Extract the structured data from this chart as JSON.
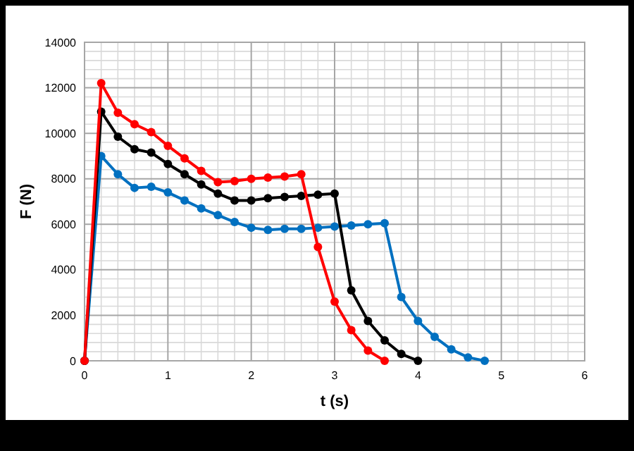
{
  "chart_data": {
    "type": "line",
    "xlabel": "t (s)",
    "ylabel": "F (N)",
    "xlim": [
      0,
      6
    ],
    "xticks": [
      0,
      1,
      2,
      3,
      4,
      5,
      6
    ],
    "ylim": [
      0,
      14000
    ],
    "yticks": [
      0,
      2000,
      4000,
      6000,
      8000,
      10000,
      12000,
      14000
    ],
    "grid": true,
    "marker": "circle",
    "line_style": "solid",
    "series": [
      {
        "color": "#0070c0",
        "x": [
          0,
          0.2,
          0.4,
          0.6,
          0.8,
          1.0,
          1.2,
          1.4,
          1.6,
          1.8,
          2.0,
          2.2,
          2.4,
          2.6,
          2.8,
          3.0,
          3.2,
          3.4,
          3.6,
          3.8,
          4.0,
          4.2,
          4.4,
          4.6,
          4.8
        ],
        "values": [
          0,
          9000,
          8200,
          7600,
          7650,
          7400,
          7050,
          6700,
          6400,
          6100,
          5850,
          5750,
          5800,
          5800,
          5850,
          5900,
          5950,
          6000,
          6050,
          2800,
          1750,
          1050,
          500,
          150,
          0
        ]
      },
      {
        "color": "#000000",
        "x": [
          0,
          0.2,
          0.4,
          0.6,
          0.8,
          1.0,
          1.2,
          1.4,
          1.6,
          1.8,
          2.0,
          2.2,
          2.4,
          2.6,
          2.8,
          3.0,
          3.2,
          3.4,
          3.6,
          3.8,
          4.0
        ],
        "values": [
          0,
          10950,
          9850,
          9300,
          9150,
          8650,
          8200,
          7750,
          7350,
          7050,
          7050,
          7150,
          7200,
          7250,
          7300,
          7350,
          3100,
          1750,
          900,
          300,
          0
        ]
      },
      {
        "color": "#ff0000",
        "x": [
          0,
          0.2,
          0.4,
          0.6,
          0.8,
          1.0,
          1.2,
          1.4,
          1.6,
          1.8,
          2.0,
          2.2,
          2.4,
          2.6,
          2.8,
          3.0,
          3.2,
          3.4,
          3.6
        ],
        "values": [
          0,
          12200,
          10900,
          10400,
          10050,
          9450,
          8900,
          8350,
          7850,
          7900,
          8000,
          8050,
          8100,
          8200,
          5000,
          2600,
          1350,
          450,
          0
        ]
      }
    ]
  }
}
